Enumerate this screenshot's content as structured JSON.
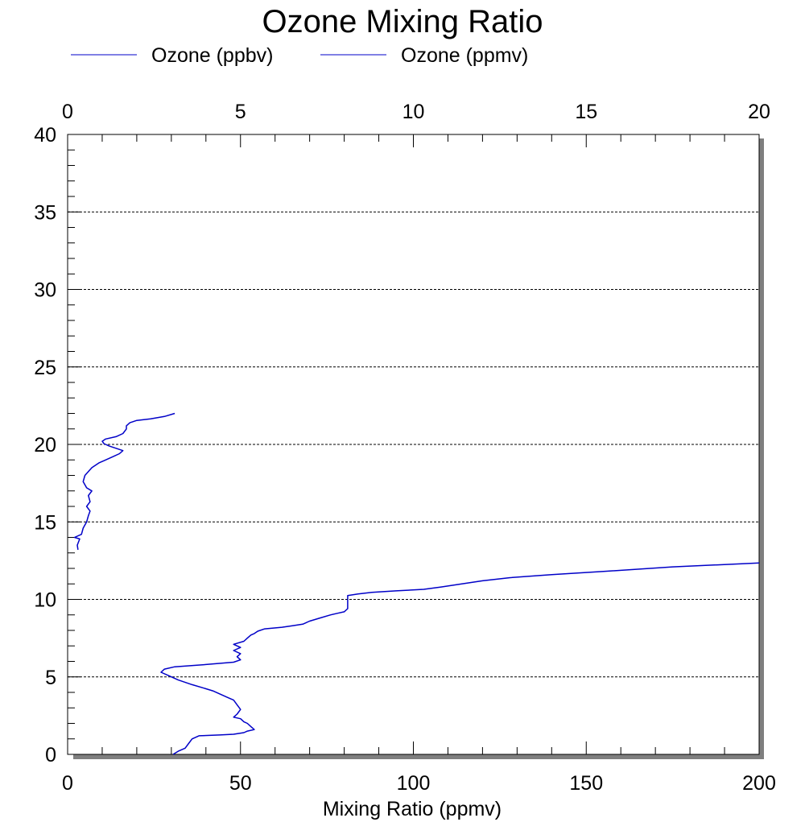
{
  "chart_data": {
    "type": "line",
    "title": "Ozone Mixing Ratio",
    "xlabel": "Mixing Ratio (ppmv)",
    "ylabel": "",
    "x_bottom": {
      "range": [
        0,
        200
      ],
      "ticks": [
        "0",
        "50",
        "100",
        "150",
        "200"
      ]
    },
    "x_top": {
      "range": [
        0,
        20
      ],
      "ticks": [
        "0",
        "5",
        "10",
        "15",
        "20"
      ]
    },
    "y": {
      "range": [
        0,
        40
      ],
      "ticks": [
        "0",
        "5",
        "10",
        "15",
        "20",
        "25",
        "30",
        "35",
        "40"
      ]
    },
    "grid": "horizontal dashed",
    "legend_position": "top",
    "line_color": "#0000c8",
    "series": [
      {
        "name": "Ozone (ppbv)",
        "axis": "bottom",
        "points": [
          [
            30.5,
            0.0
          ],
          [
            32,
            0.2
          ],
          [
            34,
            0.4
          ],
          [
            35,
            0.7
          ],
          [
            36,
            1.0
          ],
          [
            38,
            1.2
          ],
          [
            44,
            1.25
          ],
          [
            48,
            1.3
          ],
          [
            51,
            1.4
          ],
          [
            52,
            1.5
          ],
          [
            54,
            1.6
          ],
          [
            53,
            1.8
          ],
          [
            52,
            2.0
          ],
          [
            51,
            2.1
          ],
          [
            50,
            2.3
          ],
          [
            48,
            2.4
          ],
          [
            49,
            2.6
          ],
          [
            50,
            2.9
          ],
          [
            49,
            3.2
          ],
          [
            48,
            3.5
          ],
          [
            46,
            3.7
          ],
          [
            44,
            3.9
          ],
          [
            42,
            4.1
          ],
          [
            39,
            4.3
          ],
          [
            36,
            4.5
          ],
          [
            32,
            4.8
          ],
          [
            29,
            5.1
          ],
          [
            27,
            5.3
          ],
          [
            28,
            5.5
          ],
          [
            31,
            5.65
          ],
          [
            40,
            5.8
          ],
          [
            48,
            5.95
          ],
          [
            50,
            6.1
          ],
          [
            49,
            6.3
          ],
          [
            50,
            6.5
          ],
          [
            48,
            6.7
          ],
          [
            50,
            6.9
          ],
          [
            48,
            7.1
          ],
          [
            51,
            7.3
          ],
          [
            52,
            7.5
          ],
          [
            53,
            7.7
          ],
          [
            54,
            7.8
          ],
          [
            55,
            7.95
          ],
          [
            57,
            8.1
          ],
          [
            62,
            8.2
          ],
          [
            65,
            8.3
          ],
          [
            68,
            8.4
          ],
          [
            70,
            8.6
          ],
          [
            73,
            8.8
          ],
          [
            76,
            9.0
          ],
          [
            78,
            9.1
          ],
          [
            80,
            9.2
          ],
          [
            81,
            9.4
          ],
          [
            81,
            9.8
          ],
          [
            81,
            10.1
          ],
          [
            81,
            10.25
          ],
          [
            84,
            10.35
          ],
          [
            88,
            10.45
          ],
          [
            95,
            10.55
          ],
          [
            103,
            10.65
          ],
          [
            108,
            10.8
          ],
          [
            114,
            11.0
          ],
          [
            120,
            11.2
          ],
          [
            128,
            11.4
          ],
          [
            140,
            11.6
          ],
          [
            155,
            11.8
          ],
          [
            175,
            12.1
          ],
          [
            200,
            12.35
          ]
        ]
      },
      {
        "name": "Ozone (ppmv)",
        "axis": "top",
        "points": [
          [
            0.3,
            13.2
          ],
          [
            0.28,
            13.5
          ],
          [
            0.35,
            13.9
          ],
          [
            0.2,
            14.0
          ],
          [
            0.4,
            14.2
          ],
          [
            0.45,
            14.6
          ],
          [
            0.55,
            15.0
          ],
          [
            0.6,
            15.4
          ],
          [
            0.65,
            15.7
          ],
          [
            0.55,
            16.0
          ],
          [
            0.65,
            16.3
          ],
          [
            0.6,
            16.7
          ],
          [
            0.7,
            17.0
          ],
          [
            0.55,
            17.2
          ],
          [
            0.5,
            17.4
          ],
          [
            0.45,
            17.6
          ],
          [
            0.5,
            18.0
          ],
          [
            0.7,
            18.5
          ],
          [
            0.9,
            18.8
          ],
          [
            1.3,
            19.2
          ],
          [
            1.5,
            19.4
          ],
          [
            1.6,
            19.6
          ],
          [
            1.4,
            19.75
          ],
          [
            1.2,
            19.9
          ],
          [
            1.05,
            20.05
          ],
          [
            1.0,
            20.2
          ],
          [
            1.1,
            20.35
          ],
          [
            1.4,
            20.5
          ],
          [
            1.6,
            20.7
          ],
          [
            1.7,
            21.0
          ],
          [
            1.7,
            21.2
          ],
          [
            1.8,
            21.4
          ],
          [
            2.0,
            21.55
          ],
          [
            2.4,
            21.65
          ],
          [
            2.8,
            21.8
          ],
          [
            3.1,
            22.0
          ]
        ]
      }
    ]
  }
}
